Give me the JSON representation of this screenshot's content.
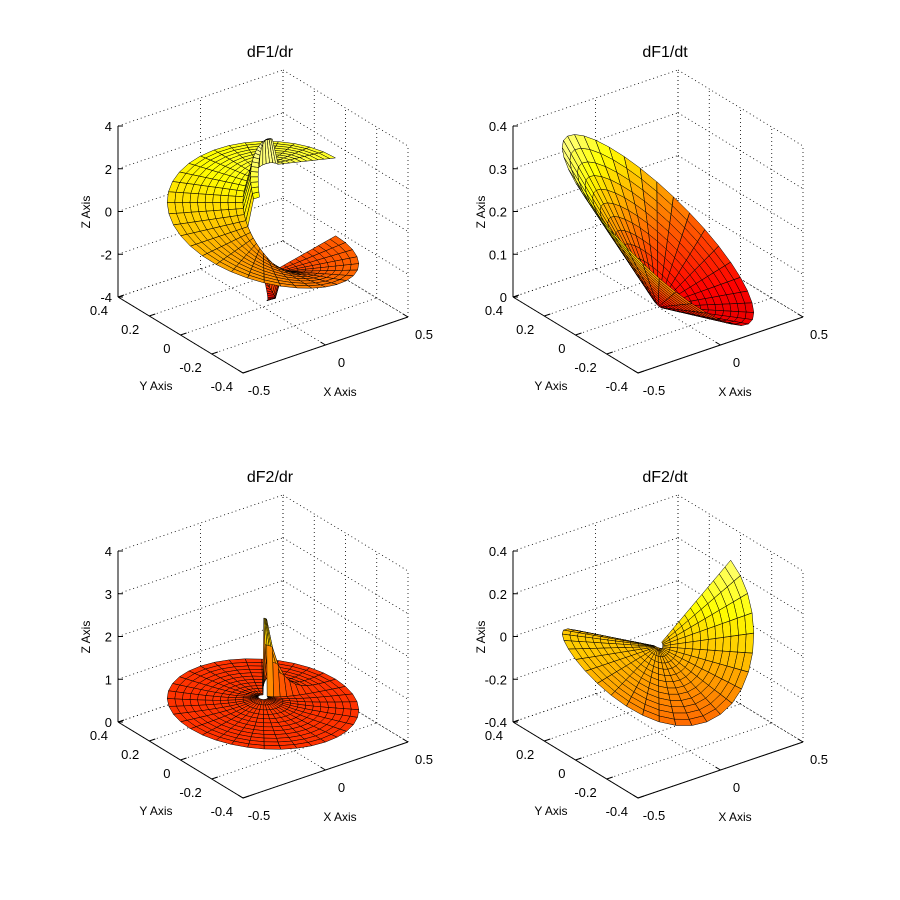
{
  "chart_data": [
    {
      "type": "surface",
      "title": "dF1/dr",
      "xlabel": "X Axis",
      "ylabel": "Y Axis",
      "zlabel": "Z Axis",
      "xlim": [
        -0.5,
        0.5
      ],
      "ylim": [
        -0.4,
        0.4
      ],
      "zlim": [
        -4,
        4
      ],
      "xticks": [
        "-0.5",
        "0",
        "0.5"
      ],
      "yticks": [
        "-0.4",
        "-0.2",
        "0",
        "0.2",
        "0.4"
      ],
      "zticks": [
        "-4",
        "-2",
        "0",
        "2",
        "4"
      ],
      "colormap": "hot",
      "grid": true
    },
    {
      "type": "surface",
      "title": "dF1/dt",
      "xlabel": "X Axis",
      "ylabel": "Y Axis",
      "zlabel": "Z Axis",
      "xlim": [
        -0.5,
        0.5
      ],
      "ylim": [
        -0.4,
        0.4
      ],
      "zlim": [
        0,
        0.4
      ],
      "xticks": [
        "-0.5",
        "0",
        "0.5"
      ],
      "yticks": [
        "-0.4",
        "-0.2",
        "0",
        "0.2",
        "0.4"
      ],
      "zticks": [
        "0",
        "0.1",
        "0.2",
        "0.3",
        "0.4"
      ],
      "colormap": "hot",
      "grid": true
    },
    {
      "type": "surface",
      "title": "dF2/dr",
      "xlabel": "X Axis",
      "ylabel": "Y Axis",
      "zlabel": "Z Axis",
      "xlim": [
        -0.5,
        0.5
      ],
      "ylim": [
        -0.4,
        0.4
      ],
      "zlim": [
        0,
        4
      ],
      "xticks": [
        "-0.5",
        "0",
        "0.5"
      ],
      "yticks": [
        "-0.4",
        "-0.2",
        "0",
        "0.2",
        "0.4"
      ],
      "zticks": [
        "0",
        "1",
        "2",
        "3",
        "4"
      ],
      "colormap": "hot",
      "grid": true
    },
    {
      "type": "surface",
      "title": "dF2/dt",
      "xlabel": "X Axis",
      "ylabel": "Y Axis",
      "zlabel": "Z Axis",
      "xlim": [
        -0.5,
        0.5
      ],
      "ylim": [
        -0.4,
        0.4
      ],
      "zlim": [
        -0.4,
        0.4
      ],
      "xticks": [
        "-0.5",
        "0",
        "0.5"
      ],
      "yticks": [
        "-0.4",
        "-0.2",
        "0",
        "0.2",
        "0.4"
      ],
      "zticks": [
        "-0.4",
        "-0.2",
        "0",
        "0.2",
        "0.4"
      ],
      "colormap": "hot",
      "grid": true
    }
  ]
}
